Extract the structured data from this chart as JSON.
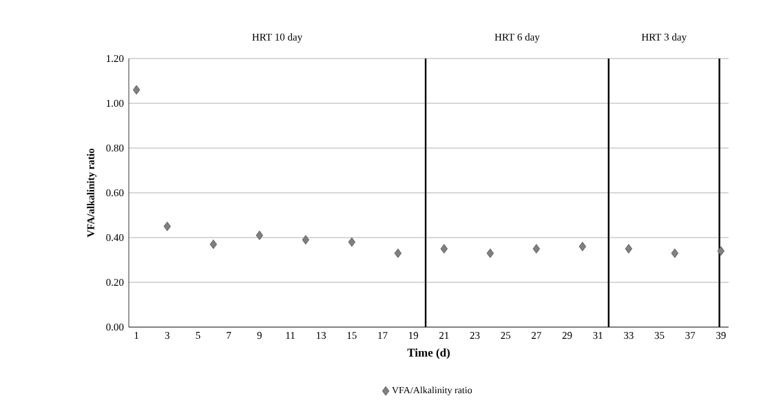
{
  "chart_data": {
    "type": "scatter",
    "xlabel": "Time (d)",
    "ylabel": "VFA/alkalinity ratio",
    "annotations": [
      "HRT 10 day",
      "HRT 6 day",
      "HRT 3 day"
    ],
    "xlim": [
      0.5,
      39.5
    ],
    "xticks": [
      1,
      3,
      5,
      7,
      9,
      11,
      13,
      15,
      17,
      19,
      21,
      23,
      25,
      27,
      29,
      31,
      33,
      35,
      37,
      39
    ],
    "ylim": [
      0,
      1.2
    ],
    "yticks": [
      {
        "value": 0,
        "label": "0.00"
      },
      {
        "value": 0.2,
        "label": "0.20"
      },
      {
        "value": 0.4,
        "label": "0.40"
      },
      {
        "value": 0.6,
        "label": "0.60"
      },
      {
        "value": 0.8,
        "label": "0.80"
      },
      {
        "value": 1.0,
        "label": "1.00"
      },
      {
        "value": 1.2,
        "label": "1.20"
      }
    ],
    "grid": "y",
    "legend": "bottom",
    "marker": "diamond",
    "ref_lines": [
      {
        "axis": "x",
        "value": 19.8,
        "color": "#000000"
      },
      {
        "axis": "x",
        "value": 31.7,
        "color": "#000000"
      },
      {
        "axis": "x",
        "value": 38.9,
        "color": "#000000"
      }
    ],
    "series": [
      {
        "name": "VFA/Alkalinity ratio",
        "color": "#808080",
        "x": [
          1,
          3,
          6,
          9,
          12,
          15,
          18,
          21,
          24,
          27,
          30,
          33,
          36,
          39
        ],
        "values": [
          1.06,
          0.45,
          0.37,
          0.41,
          0.39,
          0.38,
          0.33,
          0.35,
          0.33,
          0.35,
          0.36,
          0.35,
          0.33,
          0.34
        ]
      }
    ]
  }
}
